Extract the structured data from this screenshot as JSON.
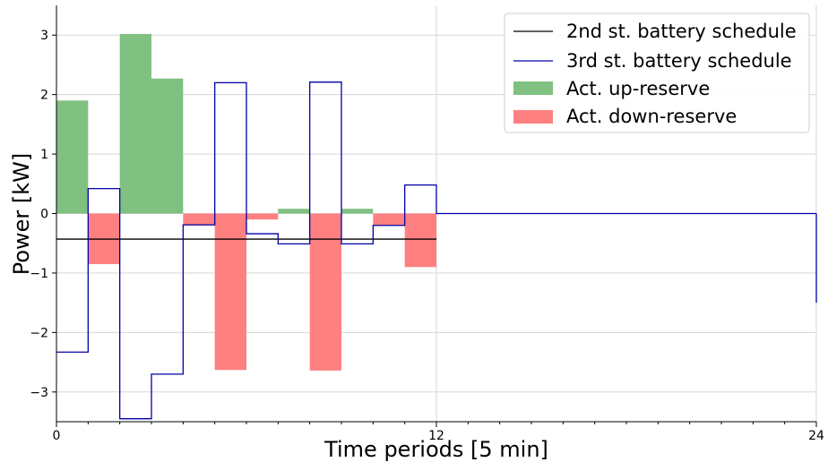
{
  "chart_data": {
    "type": "bar",
    "xlabel": "Time periods [5 min]",
    "ylabel": "Power [kW]",
    "xlim": [
      0,
      24
    ],
    "ylim": [
      -3.5,
      3.5
    ],
    "x_ticks": [
      0,
      12,
      24
    ],
    "y_ticks": [
      -3,
      -2,
      -1,
      0,
      1,
      2,
      3
    ],
    "grid": true,
    "legend_position": "top-right",
    "series": [
      {
        "name": "2nd st. battery schedule",
        "kind": "step",
        "color": "#000000",
        "values": [
          -0.43,
          -0.43,
          -0.43,
          -0.43,
          -0.43,
          -0.43,
          -0.43,
          -0.43,
          -0.43,
          -0.43,
          -0.43,
          -0.43
        ]
      },
      {
        "name": "3rd st. battery schedule",
        "kind": "step",
        "color": "#0000aa",
        "values": [
          -2.33,
          0.42,
          -3.45,
          -2.7,
          -0.19,
          2.2,
          -0.34,
          -0.51,
          2.21,
          -0.51,
          -0.2,
          0.48,
          0,
          0,
          0,
          0,
          0,
          0,
          0,
          0,
          0,
          0,
          0,
          0
        ]
      },
      {
        "name": "Act. up-reserve",
        "kind": "bar",
        "color": "#80c080",
        "values": [
          1.9,
          0,
          3.02,
          2.27,
          0,
          0,
          0,
          0.08,
          0,
          0.08,
          0,
          0
        ]
      },
      {
        "name": "Act. down-reserve",
        "kind": "bar",
        "color": "#ff8080",
        "values": [
          0,
          -0.85,
          0,
          0,
          -0.2,
          -2.63,
          -0.1,
          0,
          -2.64,
          0,
          -0.2,
          -0.9
        ]
      }
    ]
  }
}
